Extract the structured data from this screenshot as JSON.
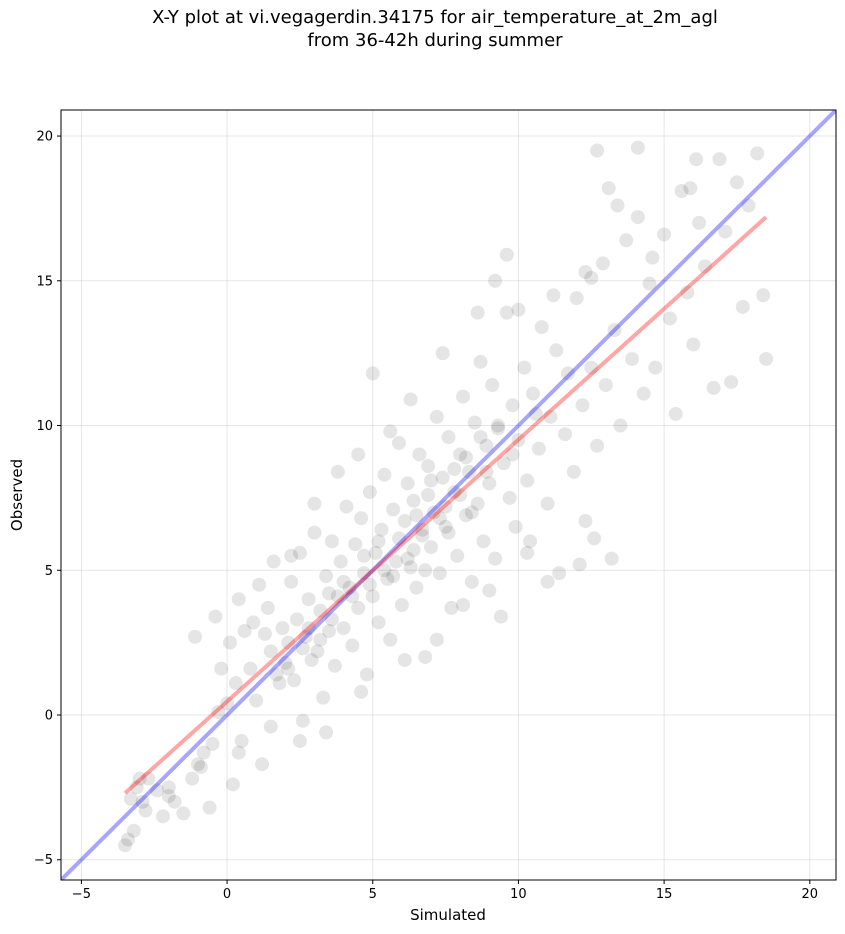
{
  "chart_data": {
    "type": "scatter",
    "title_line1": "X-Y plot at vi.vegagerdin.34175 for air_temperature_at_2m_agl",
    "title_line2": "from 36-42h during summer",
    "xlabel": "Simulated",
    "ylabel": "Observed",
    "xlim": [
      -5.7,
      20.9
    ],
    "ylim": [
      -5.7,
      20.9
    ],
    "xticks": [
      -5,
      0,
      5,
      10,
      15,
      20
    ],
    "yticks": [
      -5,
      0,
      5,
      10,
      15,
      20
    ],
    "grid": true,
    "point_color": "#000000",
    "point_opacity": 0.1,
    "one_to_one_line": {
      "color": "#0000ff",
      "opacity": 0.35
    },
    "fit_line": {
      "color": "#ff0000",
      "opacity": 0.35,
      "x": [
        -3.5,
        18.5
      ],
      "y": [
        -2.7,
        17.2
      ]
    },
    "series": [
      {
        "points": [
          [
            -3.5,
            -4.5
          ],
          [
            -3.4,
            -4.3
          ],
          [
            -3.2,
            -4.0
          ],
          [
            -3.3,
            -2.9
          ],
          [
            -3.1,
            -2.5
          ],
          [
            -2.9,
            -3.0
          ],
          [
            -2.7,
            -2.2
          ],
          [
            -2.4,
            -2.6
          ],
          [
            -2.2,
            -3.5
          ],
          [
            -2.0,
            -2.8
          ],
          [
            -1.8,
            -3.0
          ],
          [
            -1.5,
            -3.4
          ],
          [
            -1.2,
            -2.2
          ],
          [
            -1.0,
            -1.7
          ],
          [
            -0.8,
            -1.3
          ],
          [
            -0.6,
            -3.2
          ],
          [
            -0.5,
            -1.0
          ],
          [
            -0.3,
            0.1
          ],
          [
            -0.2,
            1.6
          ],
          [
            0.0,
            0.4
          ],
          [
            0.2,
            -2.4
          ],
          [
            0.3,
            1.1
          ],
          [
            0.5,
            -0.9
          ],
          [
            0.6,
            2.9
          ],
          [
            0.8,
            1.6
          ],
          [
            1.0,
            0.5
          ],
          [
            1.2,
            -1.7
          ],
          [
            1.4,
            3.7
          ],
          [
            1.5,
            2.2
          ],
          [
            1.7,
            1.4
          ],
          [
            -1.1,
            2.7
          ],
          [
            -0.4,
            3.4
          ],
          [
            0.1,
            2.5
          ],
          [
            0.4,
            4.0
          ],
          [
            0.9,
            3.2
          ],
          [
            1.1,
            4.5
          ],
          [
            1.3,
            2.8
          ],
          [
            1.6,
            5.3
          ],
          [
            1.9,
            3.0
          ],
          [
            2.0,
            1.8
          ],
          [
            2.1,
            2.5
          ],
          [
            2.2,
            4.6
          ],
          [
            2.3,
            1.2
          ],
          [
            2.4,
            3.3
          ],
          [
            2.5,
            5.6
          ],
          [
            2.6,
            -0.2
          ],
          [
            2.7,
            2.7
          ],
          [
            2.8,
            4.0
          ],
          [
            2.9,
            1.9
          ],
          [
            3.0,
            6.3
          ],
          [
            3.1,
            2.2
          ],
          [
            3.2,
            3.6
          ],
          [
            3.3,
            0.6
          ],
          [
            3.4,
            4.8
          ],
          [
            3.5,
            2.9
          ],
          [
            3.6,
            6.0
          ],
          [
            3.7,
            1.7
          ],
          [
            3.8,
            4.1
          ],
          [
            3.9,
            5.3
          ],
          [
            4.0,
            3.0
          ],
          [
            4.1,
            7.2
          ],
          [
            4.2,
            4.4
          ],
          [
            4.3,
            2.4
          ],
          [
            4.4,
            5.9
          ],
          [
            4.5,
            3.7
          ],
          [
            4.6,
            6.8
          ],
          [
            4.7,
            4.9
          ],
          [
            4.8,
            1.4
          ],
          [
            4.9,
            7.7
          ],
          [
            5.0,
            4.1
          ],
          [
            5.1,
            5.6
          ],
          [
            5.2,
            3.2
          ],
          [
            5.3,
            6.4
          ],
          [
            5.4,
            8.3
          ],
          [
            5.5,
            4.7
          ],
          [
            5.6,
            2.6
          ],
          [
            5.7,
            7.1
          ],
          [
            5.8,
            5.3
          ],
          [
            5.9,
            9.4
          ],
          [
            6.0,
            3.8
          ],
          [
            6.1,
            6.7
          ],
          [
            6.2,
            8.0
          ],
          [
            6.3,
            5.1
          ],
          [
            6.4,
            7.4
          ],
          [
            6.5,
            4.4
          ],
          [
            6.6,
            9.0
          ],
          [
            6.7,
            6.2
          ],
          [
            6.8,
            2.0
          ],
          [
            6.9,
            8.6
          ],
          [
            7.0,
            5.8
          ],
          [
            7.1,
            7.0
          ],
          [
            7.2,
            10.3
          ],
          [
            7.3,
            4.9
          ],
          [
            7.4,
            8.2
          ],
          [
            7.5,
            6.5
          ],
          [
            7.6,
            9.6
          ],
          [
            7.7,
            3.7
          ],
          [
            7.8,
            7.7
          ],
          [
            7.9,
            5.5
          ],
          [
            8.0,
            9.0
          ],
          [
            8.1,
            11.0
          ],
          [
            8.2,
            6.9
          ],
          [
            8.3,
            8.4
          ],
          [
            8.4,
            4.6
          ],
          [
            8.5,
            10.1
          ],
          [
            8.6,
            7.3
          ],
          [
            8.7,
            12.2
          ],
          [
            8.8,
            6.0
          ],
          [
            8.9,
            9.3
          ],
          [
            9.0,
            8.0
          ],
          [
            9.1,
            11.4
          ],
          [
            9.2,
            5.4
          ],
          [
            9.3,
            10.0
          ],
          [
            9.4,
            3.4
          ],
          [
            9.5,
            8.7
          ],
          [
            9.6,
            13.9
          ],
          [
            9.7,
            7.5
          ],
          [
            9.8,
            10.7
          ],
          [
            9.9,
            6.5
          ],
          [
            10.0,
            9.5
          ],
          [
            10.2,
            12.0
          ],
          [
            10.3,
            8.1
          ],
          [
            10.4,
            6.0
          ],
          [
            10.5,
            11.1
          ],
          [
            10.7,
            9.2
          ],
          [
            10.8,
            13.4
          ],
          [
            11.0,
            7.3
          ],
          [
            11.1,
            10.3
          ],
          [
            11.3,
            12.6
          ],
          [
            11.4,
            4.9
          ],
          [
            11.6,
            9.7
          ],
          [
            11.7,
            11.8
          ],
          [
            11.9,
            8.4
          ],
          [
            12.0,
            14.4
          ],
          [
            12.2,
            10.7
          ],
          [
            12.3,
            6.7
          ],
          [
            12.5,
            12.0
          ],
          [
            12.7,
            9.3
          ],
          [
            12.9,
            15.6
          ],
          [
            13.0,
            11.4
          ],
          [
            13.2,
            5.4
          ],
          [
            13.3,
            13.3
          ],
          [
            13.5,
            10.0
          ],
          [
            13.7,
            16.4
          ],
          [
            13.9,
            12.3
          ],
          [
            14.1,
            17.2
          ],
          [
            14.3,
            11.1
          ],
          [
            14.5,
            14.9
          ],
          [
            14.7,
            12.0
          ],
          [
            15.0,
            16.6
          ],
          [
            15.2,
            13.7
          ],
          [
            15.4,
            10.4
          ],
          [
            15.6,
            18.1
          ],
          [
            15.8,
            14.6
          ],
          [
            16.0,
            12.8
          ],
          [
            16.2,
            17.0
          ],
          [
            16.4,
            15.5
          ],
          [
            16.7,
            11.3
          ],
          [
            16.9,
            19.2
          ],
          [
            17.1,
            16.7
          ],
          [
            17.3,
            11.5
          ],
          [
            17.5,
            18.4
          ],
          [
            17.7,
            14.1
          ],
          [
            17.9,
            17.6
          ],
          [
            18.2,
            19.4
          ],
          [
            18.4,
            14.5
          ],
          [
            18.5,
            12.3
          ],
          [
            16.1,
            19.2
          ],
          [
            12.7,
            19.5
          ],
          [
            15.9,
            18.2
          ],
          [
            14.1,
            19.6
          ],
          [
            13.1,
            18.2
          ],
          [
            12.3,
            15.3
          ],
          [
            9.6,
            15.9
          ],
          [
            9.2,
            15.0
          ],
          [
            8.6,
            13.9
          ],
          [
            7.4,
            12.5
          ],
          [
            5.0,
            11.8
          ],
          [
            3.0,
            7.3
          ],
          [
            2.2,
            5.5
          ],
          [
            6.3,
            10.9
          ],
          [
            5.6,
            9.8
          ],
          [
            4.5,
            9.0
          ],
          [
            3.8,
            8.4
          ],
          [
            10.0,
            14.0
          ],
          [
            11.2,
            14.5
          ],
          [
            12.5,
            15.1
          ],
          [
            13.4,
            17.6
          ],
          [
            14.6,
            15.8
          ],
          [
            10.3,
            5.6
          ],
          [
            9.0,
            4.3
          ],
          [
            11.0,
            4.6
          ],
          [
            12.1,
            5.2
          ],
          [
            12.6,
            6.1
          ],
          [
            8.1,
            3.8
          ],
          [
            7.2,
            2.6
          ],
          [
            6.1,
            1.9
          ],
          [
            4.6,
            0.8
          ],
          [
            3.4,
            -0.6
          ],
          [
            2.5,
            -0.9
          ],
          [
            1.5,
            -0.4
          ],
          [
            0.4,
            -1.3
          ],
          [
            -0.9,
            -1.8
          ],
          [
            -2.0,
            -2.5
          ],
          [
            -2.8,
            -3.3
          ],
          [
            -3.0,
            -2.2
          ],
          [
            6.7,
            6.4
          ],
          [
            6.9,
            7.6
          ],
          [
            7.3,
            6.8
          ],
          [
            7.8,
            8.5
          ],
          [
            5.9,
            6.1
          ],
          [
            5.4,
            5.0
          ],
          [
            4.9,
            4.5
          ],
          [
            4.3,
            4.1
          ],
          [
            3.6,
            3.3
          ],
          [
            3.2,
            2.6
          ],
          [
            2.6,
            2.3
          ],
          [
            2.1,
            1.6
          ],
          [
            1.8,
            1.1
          ],
          [
            6.5,
            6.9
          ],
          [
            7.0,
            8.1
          ],
          [
            7.5,
            7.2
          ],
          [
            8.2,
            8.9
          ],
          [
            8.7,
            9.6
          ],
          [
            9.3,
            9.9
          ],
          [
            9.8,
            9.0
          ],
          [
            10.6,
            10.4
          ],
          [
            6.2,
            5.4
          ],
          [
            5.7,
            4.8
          ],
          [
            5.2,
            6.0
          ],
          [
            4.7,
            5.5
          ],
          [
            4.0,
            4.6
          ],
          [
            3.5,
            4.2
          ],
          [
            2.8,
            3.0
          ],
          [
            6.4,
            5.7
          ],
          [
            6.8,
            5.0
          ],
          [
            7.6,
            6.3
          ],
          [
            8.0,
            7.6
          ],
          [
            8.4,
            7.0
          ],
          [
            8.9,
            8.4
          ]
        ]
      }
    ]
  }
}
